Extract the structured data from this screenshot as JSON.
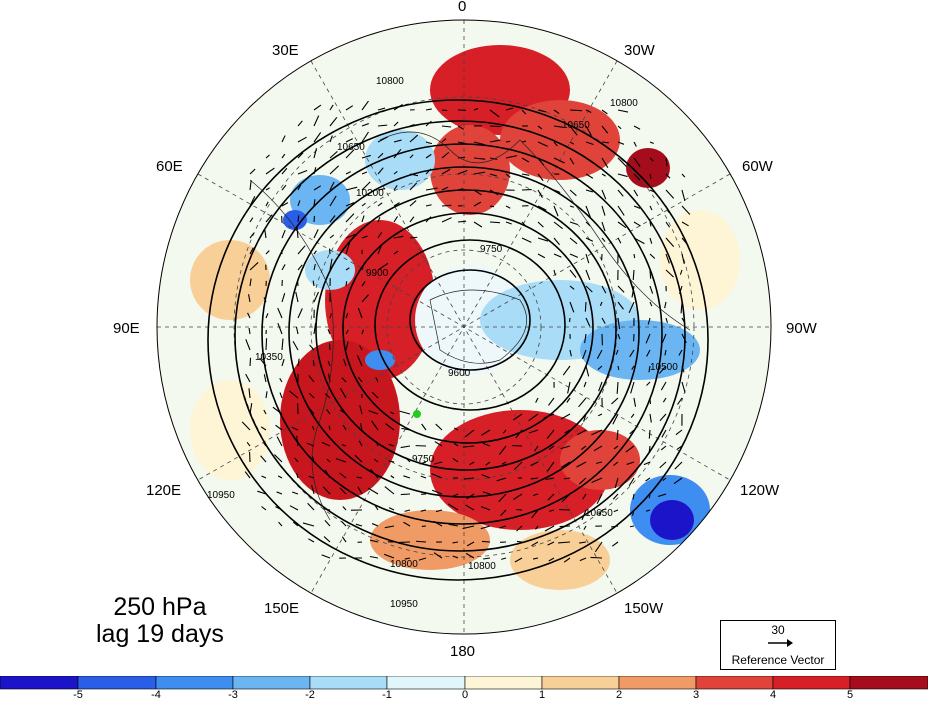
{
  "longitude_labels": {
    "n0": "0",
    "e30": "30E",
    "w30": "30W",
    "e60": "60E",
    "w60": "60W",
    "e90": "90E",
    "w90": "90W",
    "e120": "120E",
    "w120": "120W",
    "e150": "150E",
    "w150": "150W",
    "s180": "180"
  },
  "caption": {
    "level": "250 hPa",
    "lag": "lag 19 days"
  },
  "reference_vector": {
    "magnitude": "30",
    "label": "Reference Vector"
  },
  "contour_labels": [
    "10800",
    "10650",
    "10500",
    "10350",
    "10200",
    "9900",
    "9750",
    "9600",
    "10950"
  ],
  "colorbar": {
    "ticks": [
      "-5",
      "-4",
      "-3",
      "-2",
      "-1",
      "0",
      "1",
      "2",
      "3",
      "4",
      "5"
    ],
    "colors": [
      "#1c14c8",
      "#2a5de8",
      "#3d8ef0",
      "#6bb6f2",
      "#a8dcf7",
      "#e0f6fb",
      "#fdf5d5",
      "#f9cf98",
      "#f09a65",
      "#e0433a",
      "#d61f26",
      "#a50d1c"
    ]
  },
  "palette": {
    "strong_red": "#b5121b",
    "red": "#e0433a",
    "blue": "#3d8ef0",
    "pale": "#eef8fb"
  }
}
